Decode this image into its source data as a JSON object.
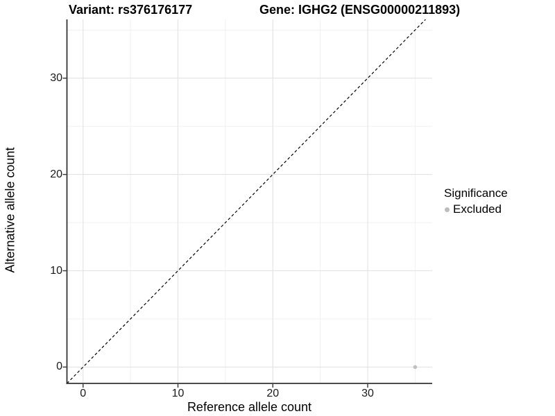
{
  "header": {
    "variant_title": "Variant: rs376176177",
    "gene_title": "Gene: IGHG2 (ENSG00000211893)"
  },
  "chart_data": {
    "type": "scatter",
    "xlabel": "Reference allele count",
    "ylabel": "Alternative allele count",
    "x_ticks": [
      0,
      10,
      20,
      30
    ],
    "y_ticks": [
      0,
      10,
      20,
      30
    ],
    "x_minor_ticks": [
      5,
      15,
      25,
      35
    ],
    "y_minor_ticks": [
      5,
      15,
      25,
      35
    ],
    "xlim": [
      -1.7,
      36.8
    ],
    "ylim": [
      -1.7,
      36.1
    ],
    "grid": "major and minor, light gray on white",
    "identity_line": {
      "slope": 1,
      "intercept": 0,
      "style": "dashed",
      "color": "#000000"
    },
    "points": [
      {
        "x": 35,
        "y": 0,
        "significance": "Excluded"
      }
    ],
    "legend": {
      "title": "Significance",
      "position": "right",
      "entries": [
        {
          "label": "Excluded",
          "color": "#bdbdbd"
        }
      ]
    }
  },
  "colors": {
    "background": "#ffffff",
    "text": "#000000",
    "axis_line": "#333333",
    "tick_mark": "#333333",
    "grid_major": "#e2e2e2",
    "grid_minor": "#efefef",
    "point": "#c0c0c0",
    "identity_line": "#000000"
  }
}
